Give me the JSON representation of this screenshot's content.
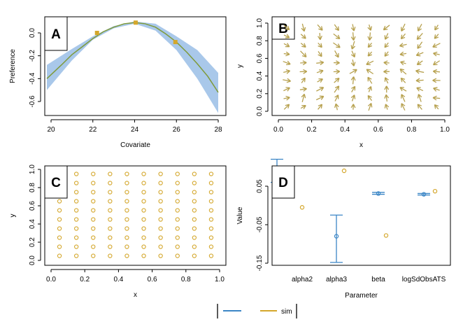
{
  "colors": {
    "fit": "#7f9a3a",
    "band": "#a9c8ea",
    "gold": "#d4a72c",
    "estimate": "#3b86c6",
    "arrow": "#b7a14f"
  },
  "legend": {
    "items": [
      {
        "label": "",
        "color": "#3b86c6"
      },
      {
        "label": "sim",
        "color": "#d4a72c"
      }
    ]
  },
  "chart_data": [
    {
      "panel": "A",
      "type": "line",
      "xlabel": "Covariate",
      "ylabel": "Preference",
      "xlim": [
        19.5,
        28.3
      ],
      "ylim": [
        -0.75,
        0.16
      ],
      "xticks": [
        20,
        22,
        24,
        26,
        28
      ],
      "yticks": [
        0.0,
        -0.2,
        -0.4,
        -0.6
      ],
      "fit": {
        "x": [
          19.8,
          20.5,
          21.0,
          21.5,
          22.0,
          22.5,
          23.0,
          23.5,
          24.0,
          24.5,
          25.0,
          25.5,
          26.0,
          26.5,
          27.0,
          27.5,
          28.0
        ],
        "y": [
          -0.4,
          -0.28,
          -0.19,
          -0.12,
          -0.05,
          0.01,
          0.05,
          0.08,
          0.09,
          0.08,
          0.05,
          -0.01,
          -0.08,
          -0.17,
          -0.27,
          -0.38,
          -0.52
        ]
      },
      "band": {
        "x": [
          19.8,
          21.0,
          22.0,
          23.0,
          24.0,
          25.0,
          26.0,
          27.0,
          28.0
        ],
        "lower": [
          -0.5,
          -0.24,
          -0.06,
          0.04,
          0.08,
          0.02,
          -0.15,
          -0.4,
          -0.7
        ],
        "upper": [
          -0.28,
          -0.14,
          -0.03,
          0.06,
          0.1,
          0.08,
          -0.03,
          -0.15,
          -0.35
        ]
      },
      "points": {
        "x": [
          22.2,
          24.05,
          25.95
        ],
        "y": [
          0.0,
          0.09,
          -0.08
        ]
      }
    },
    {
      "panel": "B",
      "type": "quiver",
      "xlabel": "x",
      "ylabel": "y",
      "xlim": [
        0,
        1
      ],
      "ylim": [
        0,
        1
      ],
      "xticks": [
        0.0,
        0.2,
        0.4,
        0.6,
        0.8,
        1.0
      ],
      "yticks": [
        0.0,
        0.2,
        0.4,
        0.6,
        0.8,
        1.0
      ],
      "grid_x": [
        0.05,
        0.15,
        0.25,
        0.35,
        0.45,
        0.55,
        0.65,
        0.75,
        0.85,
        0.95
      ],
      "grid_y": [
        0.05,
        0.15,
        0.25,
        0.35,
        0.45,
        0.55,
        0.65,
        0.75,
        0.85,
        0.95
      ]
    },
    {
      "panel": "C",
      "type": "scatter",
      "xlabel": "x",
      "ylabel": "y",
      "xlim": [
        0,
        1
      ],
      "ylim": [
        0,
        1
      ],
      "xticks": [
        0.0,
        0.2,
        0.4,
        0.6,
        0.8,
        1.0
      ],
      "yticks": [
        0.0,
        0.2,
        0.4,
        0.6,
        0.8,
        1.0
      ],
      "grid_x": [
        0.15,
        0.25,
        0.35,
        0.45,
        0.55,
        0.65,
        0.75,
        0.85,
        0.95
      ],
      "grid_y": [
        0.05,
        0.15,
        0.25,
        0.35,
        0.45,
        0.55,
        0.65,
        0.75,
        0.85,
        0.95
      ],
      "extra": [
        {
          "x": 0.05,
          "y": 0.05
        },
        {
          "x": 0.05,
          "y": 0.15
        },
        {
          "x": 0.05,
          "y": 0.25
        },
        {
          "x": 0.05,
          "y": 0.35
        },
        {
          "x": 0.05,
          "y": 0.45
        },
        {
          "x": 0.05,
          "y": 0.55
        },
        {
          "x": 0.05,
          "y": 0.65
        }
      ]
    },
    {
      "panel": "D",
      "type": "errorbar",
      "xlabel": "Parameter",
      "ylabel": "Value",
      "categories": [
        "alpha2",
        "alpha3",
        "beta",
        "logSdObsATS"
      ],
      "ylim": [
        -0.16,
        0.13
      ],
      "yticks": [
        0.05,
        -0.05,
        -0.15
      ],
      "estimate": [
        0.08,
        -0.08,
        0.031,
        0.029
      ],
      "lower": [
        0.06,
        -0.148,
        0.029,
        0.027
      ],
      "upper": [
        0.12,
        -0.025,
        0.034,
        0.031
      ],
      "sim": [
        -0.005,
        0.09,
        -0.078,
        0.037
      ]
    }
  ]
}
